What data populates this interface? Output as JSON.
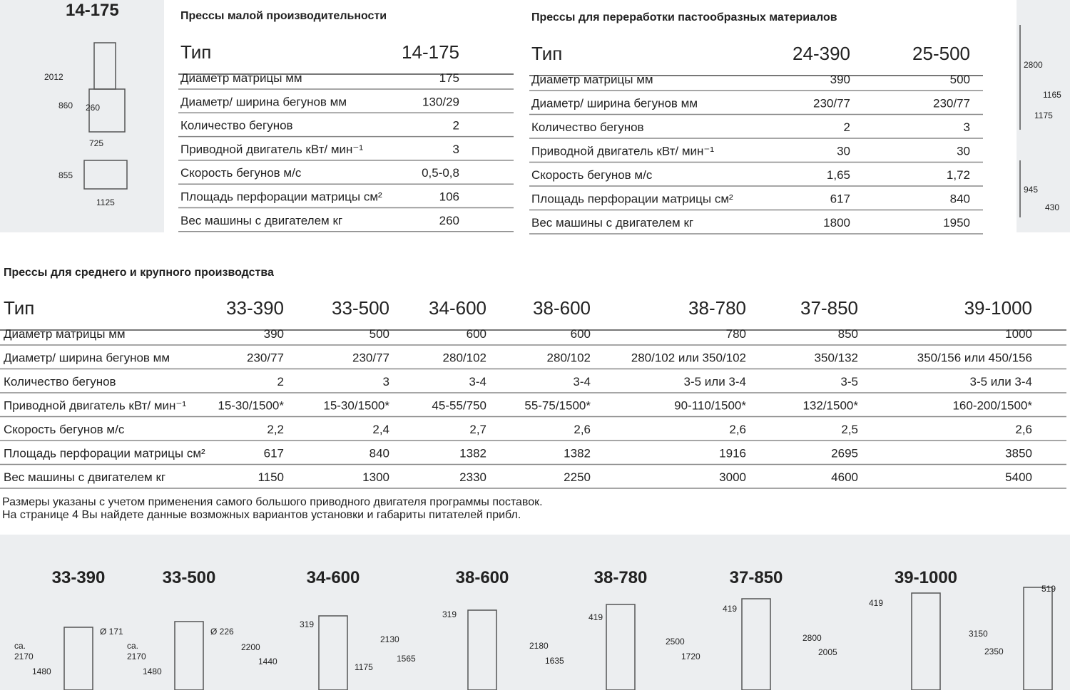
{
  "top_drawing": {
    "title": "14-175",
    "dims": [
      "2012",
      "860",
      "260",
      "725",
      "855",
      "1125"
    ]
  },
  "table_small": {
    "title": "Прессы малой производительности",
    "header": [
      "Тип",
      "14-175"
    ],
    "rows": [
      [
        "Диаметр матрицы мм",
        "175"
      ],
      [
        "Диаметр/ ширина бегунов мм",
        "130/29"
      ],
      [
        "Количество бегунов",
        "2"
      ],
      [
        "Приводной двигатель кВт/ мин⁻¹",
        "3"
      ],
      [
        "Скорость бегунов м/с",
        "0,5-0,8"
      ],
      [
        "Площадь перфорации матрицы см²",
        "106"
      ],
      [
        "Вес машины с двигателем кг",
        "260"
      ]
    ]
  },
  "table_paste": {
    "title": "Прессы для переработки пастообразных материалов",
    "header": [
      "Тип",
      "24-390",
      "25-500"
    ],
    "rows": [
      [
        "Диаметр матрицы мм",
        "390",
        "500"
      ],
      [
        "Диаметр/ ширина бегунов мм",
        "230/77",
        "230/77"
      ],
      [
        "Количество бегунов",
        "2",
        "3"
      ],
      [
        "Приводной двигатель кВт/ мин⁻¹",
        "30",
        "30"
      ],
      [
        "Скорость бегунов м/с",
        "1,65",
        "1,72"
      ],
      [
        "Площадь перфорации матрицы см²",
        "617",
        "840"
      ],
      [
        "Вес машины с двигателем кг",
        "1800",
        "1950"
      ]
    ]
  },
  "right_drawing": {
    "dims": [
      "2800",
      "1165",
      "1175",
      "945",
      "430"
    ]
  },
  "table_large": {
    "title": "Прессы для среднего и крупного производства",
    "header": [
      "Тип",
      "33-390",
      "33-500",
      "34-600",
      "38-600",
      "38-780",
      "37-850",
      "39-1000"
    ],
    "rows": [
      [
        "Диаметр матрицы мм",
        "390",
        "500",
        "600",
        "600",
        "780",
        "850",
        "1000"
      ],
      [
        "Диаметр/ ширина бегунов мм",
        "230/77",
        "230/77",
        "280/102",
        "280/102",
        "280/102 или 350/102",
        "350/132",
        "350/156 или 450/156"
      ],
      [
        "Количество бегунов",
        "2",
        "3",
        "3-4",
        "3-4",
        "3-5 или 3-4",
        "3-5",
        "3-5 или 3-4"
      ],
      [
        "Приводной двигатель кВт/ мин⁻¹",
        "15-30/1500*",
        "15-30/1500*",
        "45-55/750",
        "55-75/1500*",
        "90-110/1500*",
        "132/1500*",
        "160-200/1500*"
      ],
      [
        "Скорость бегунов м/с",
        "2,2",
        "2,4",
        "2,7",
        "2,6",
        "2,6",
        "2,5",
        "2,6"
      ],
      [
        "Площадь перфорации матрицы см²",
        "617",
        "840",
        "1382",
        "1382",
        "1916",
        "2695",
        "3850"
      ],
      [
        "Вес машины с двигателем кг",
        "1150",
        "1300",
        "2330",
        "2250",
        "3000",
        "4600",
        "5400"
      ]
    ]
  },
  "notes": [
    "Размеры указаны с учетом применения самого большого приводного двигателя программы поставок.",
    "На странице 4 Вы найдете данные возможных вариантов установки и габариты питателей прибл."
  ],
  "bottom_drawings": [
    {
      "title": "33-390",
      "dims": [
        "ca.",
        "2170",
        "1480",
        "Ø 171"
      ]
    },
    {
      "title": "33-500",
      "dims": [
        "ca.",
        "2170",
        "1480",
        "Ø 226"
      ]
    },
    {
      "title": "34-600",
      "dims": [
        "2200",
        "1440",
        "319",
        "1175"
      ]
    },
    {
      "title": "38-600",
      "dims": [
        "2130",
        "1565",
        "319"
      ]
    },
    {
      "title": "38-780",
      "dims": [
        "2180",
        "1635",
        "419"
      ]
    },
    {
      "title": "37-850",
      "dims": [
        "2500",
        "1720",
        "419"
      ]
    },
    {
      "title": "39-1000",
      "dims": [
        "2800",
        "2005",
        "419"
      ]
    },
    {
      "dims": [
        "3150",
        "2350",
        "519"
      ]
    }
  ]
}
